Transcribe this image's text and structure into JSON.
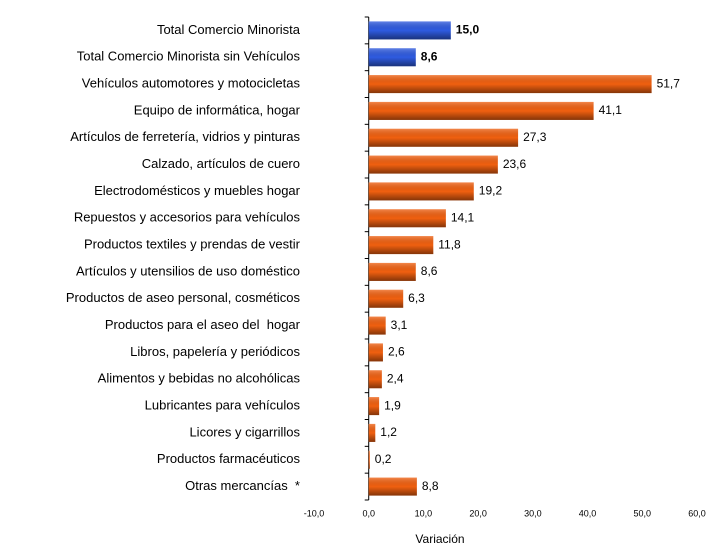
{
  "chart_data": {
    "type": "bar",
    "orientation": "horizontal",
    "categories": [
      "Total Comercio Minorista",
      "Total Comercio Minorista sin Vehículos",
      "Vehículos automotores y motocicletas",
      "Equipo de informática, hogar",
      "Artículos de ferretería, vidrios y pinturas",
      "Calzado, artículos de cuero",
      "Electrodomésticos y muebles hogar",
      "Repuestos y accesorios para vehículos",
      "Productos textiles y prendas de vestir",
      "Artículos y utensilios de uso doméstico",
      "Productos de aseo personal, cosméticos",
      "Productos para el aseo del  hogar",
      "Libros, papelería y periódicos",
      "Alimentos y bebidas no alcohólicas",
      "Lubricantes para vehículos",
      "Licores y cigarrillos",
      "Productos farmacéuticos",
      "Otras mercancías  *"
    ],
    "values": [
      15.0,
      8.6,
      51.7,
      41.1,
      27.3,
      23.6,
      19.2,
      14.1,
      11.8,
      8.6,
      6.3,
      3.1,
      2.6,
      2.4,
      1.9,
      1.2,
      0.2,
      8.8
    ],
    "value_labels": [
      "15,0",
      "8,6",
      "51,7",
      "41,1",
      "27,3",
      "23,6",
      "19,2",
      "14,1",
      "11,8",
      "8,6",
      "6,3",
      "3,1",
      "2,6",
      "2,4",
      "1,9",
      "1,2",
      "0,2",
      "8,8"
    ],
    "colors": [
      "#2f5be0",
      "#2f5be0",
      "#f06010",
      "#f06010",
      "#f06010",
      "#f06010",
      "#f06010",
      "#f06010",
      "#f06010",
      "#f06010",
      "#f06010",
      "#f06010",
      "#f06010",
      "#f06010",
      "#f06010",
      "#f06010",
      "#f06010",
      "#f06010"
    ],
    "xlabel": "Variación",
    "xlim": [
      -10,
      60
    ],
    "xticks": [
      {
        "value": -10,
        "label": "-10,0"
      },
      {
        "value": 0,
        "label": "0,0"
      },
      {
        "value": 10,
        "label": "10,0"
      },
      {
        "value": 20,
        "label": "20,0"
      },
      {
        "value": 30,
        "label": "30,0"
      },
      {
        "value": 40,
        "label": "40,0"
      },
      {
        "value": 50,
        "label": "50,0"
      },
      {
        "value": 60,
        "label": "60,0"
      }
    ]
  }
}
